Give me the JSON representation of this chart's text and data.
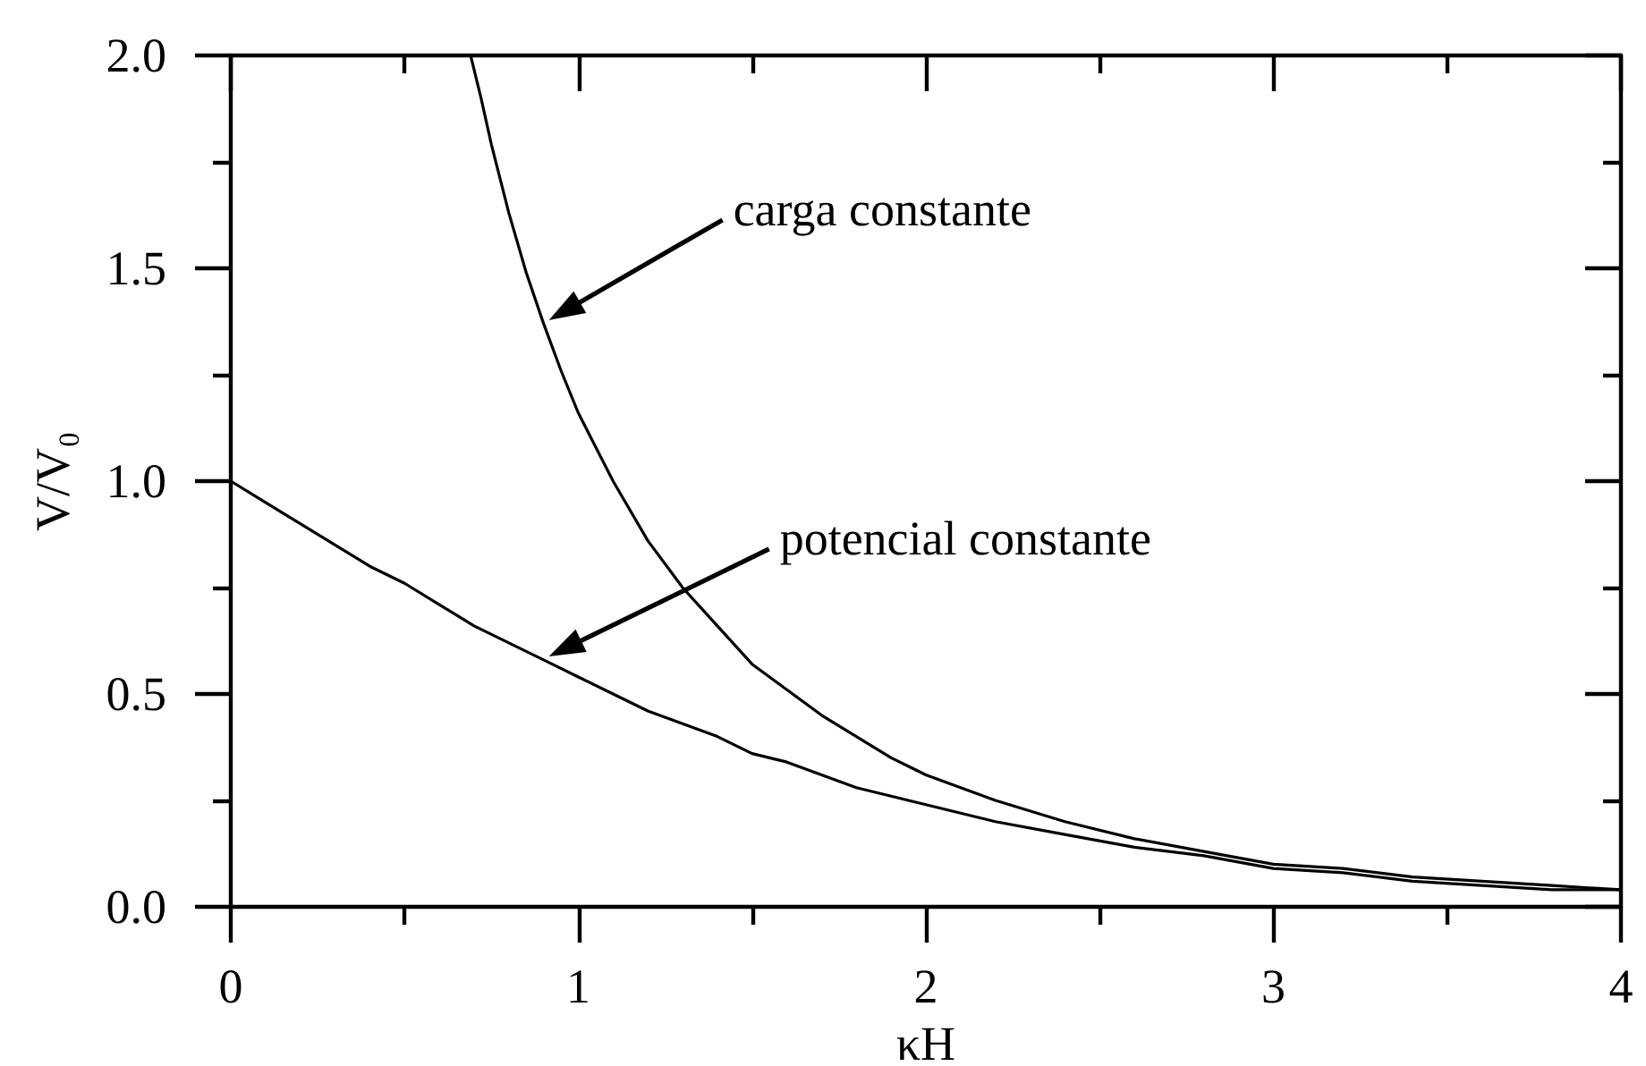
{
  "chart_data": {
    "type": "line",
    "xlabel": "κH",
    "ylabel": "V/V₀",
    "xlim": [
      0,
      4
    ],
    "xticks": [
      0,
      {
        "value": 0.5,
        "label": null
      },
      1,
      {
        "value": 1.5,
        "label": null
      },
      2,
      {
        "value": 2.5,
        "label": null
      },
      3,
      {
        "value": 3.5,
        "label": null
      },
      4
    ],
    "ylim": [
      0,
      2
    ],
    "yticks": [
      {
        "value": 0,
        "label": "0.0"
      },
      {
        "value": 0.25,
        "label": null
      },
      {
        "value": 0.5,
        "label": "0.5"
      },
      {
        "value": 0.75,
        "label": null
      },
      {
        "value": 1,
        "label": "1.0"
      },
      {
        "value": 1.25,
        "label": null
      },
      {
        "value": 1.5,
        "label": "1.5"
      },
      {
        "value": 1.75,
        "label": null
      },
      {
        "value": 2,
        "label": "2.0"
      }
    ],
    "series": [
      {
        "color": "#000000",
        "x": [
          0.69,
          0.72,
          0.75,
          0.8,
          0.85,
          0.9,
          0.95,
          1.0,
          1.05,
          1.1,
          1.2,
          1.3,
          1.4,
          1.5,
          1.6,
          1.7,
          1.8,
          1.9,
          2.0,
          2.2,
          2.4,
          2.6,
          2.8,
          3.0,
          3.2,
          3.4,
          3.6,
          3.8,
          4.0
        ],
        "values": [
          2.0,
          1.9,
          1.79,
          1.63,
          1.49,
          1.37,
          1.26,
          1.16,
          1.08,
          1.0,
          0.86,
          0.75,
          0.66,
          0.57,
          0.51,
          0.45,
          0.4,
          0.35,
          0.31,
          0.25,
          0.2,
          0.16,
          0.13,
          0.1,
          0.09,
          0.07,
          0.06,
          0.05,
          0.04
        ]
      },
      {
        "color": "#000000",
        "x": [
          0,
          0.1,
          0.2,
          0.3,
          0.4,
          0.5,
          0.6,
          0.7,
          0.8,
          0.9,
          1.0,
          1.1,
          1.2,
          1.3,
          1.4,
          1.5,
          1.6,
          1.7,
          1.8,
          1.9,
          2.0,
          2.2,
          2.4,
          2.6,
          2.8,
          3.0,
          3.2,
          3.4,
          3.6,
          3.8,
          4.0
        ],
        "values": [
          1.0,
          0.95,
          0.9,
          0.85,
          0.8,
          0.76,
          0.71,
          0.66,
          0.62,
          0.58,
          0.54,
          0.5,
          0.46,
          0.43,
          0.4,
          0.36,
          0.34,
          0.31,
          0.28,
          0.26,
          0.24,
          0.2,
          0.17,
          0.14,
          0.12,
          0.09,
          0.08,
          0.06,
          0.05,
          0.04,
          0.04
        ]
      }
    ],
    "annotations": [
      "carga constante",
      "potencial constante"
    ],
    "grid": false,
    "marker": "none",
    "line_style": "solid"
  }
}
